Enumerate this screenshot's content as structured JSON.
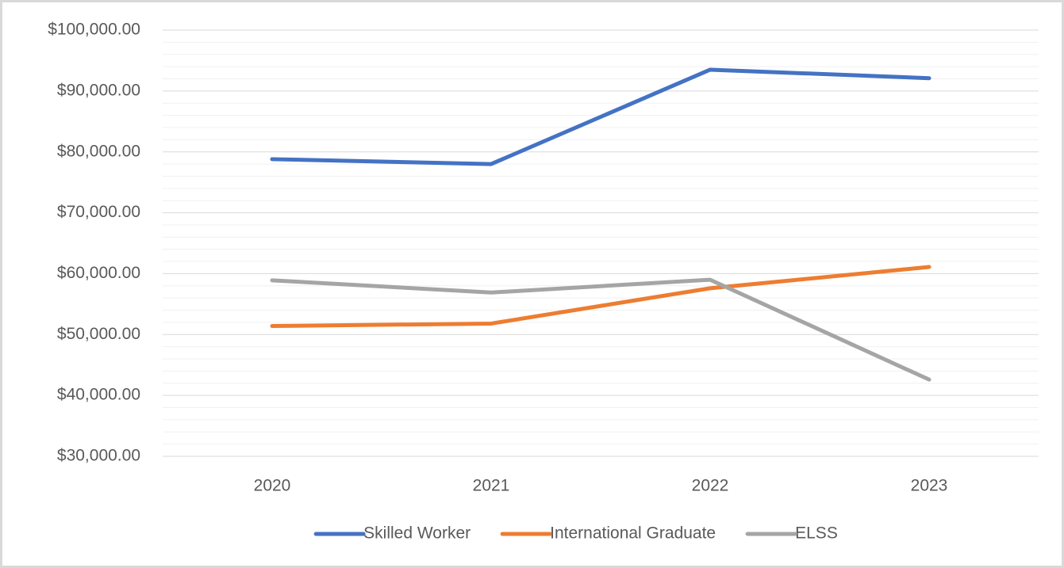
{
  "chart_data": {
    "type": "line",
    "categories": [
      "2020",
      "2021",
      "2022",
      "2023"
    ],
    "series": [
      {
        "name": "Skilled Worker",
        "color": "#4472c4",
        "values": [
          78800,
          78000,
          93500,
          92100
        ]
      },
      {
        "name": "International Graduate",
        "color": "#ed7d31",
        "values": [
          51400,
          51800,
          57600,
          61100
        ]
      },
      {
        "name": "ELSS",
        "color": "#a5a5a5",
        "values": [
          58900,
          56900,
          59000,
          42600
        ]
      }
    ],
    "ylim": [
      30000,
      100000
    ],
    "yticks": [
      {
        "value": 30000,
        "label": "$30,000.00"
      },
      {
        "value": 40000,
        "label": "$40,000.00"
      },
      {
        "value": 50000,
        "label": "$50,000.00"
      },
      {
        "value": 60000,
        "label": "$60,000.00"
      },
      {
        "value": 70000,
        "label": "$70,000.00"
      },
      {
        "value": 80000,
        "label": "$80,000.00"
      },
      {
        "value": 90000,
        "label": "$90,000.00"
      },
      {
        "value": 100000,
        "label": "$100,000.00"
      }
    ],
    "grid": true,
    "legend": "bottom"
  }
}
